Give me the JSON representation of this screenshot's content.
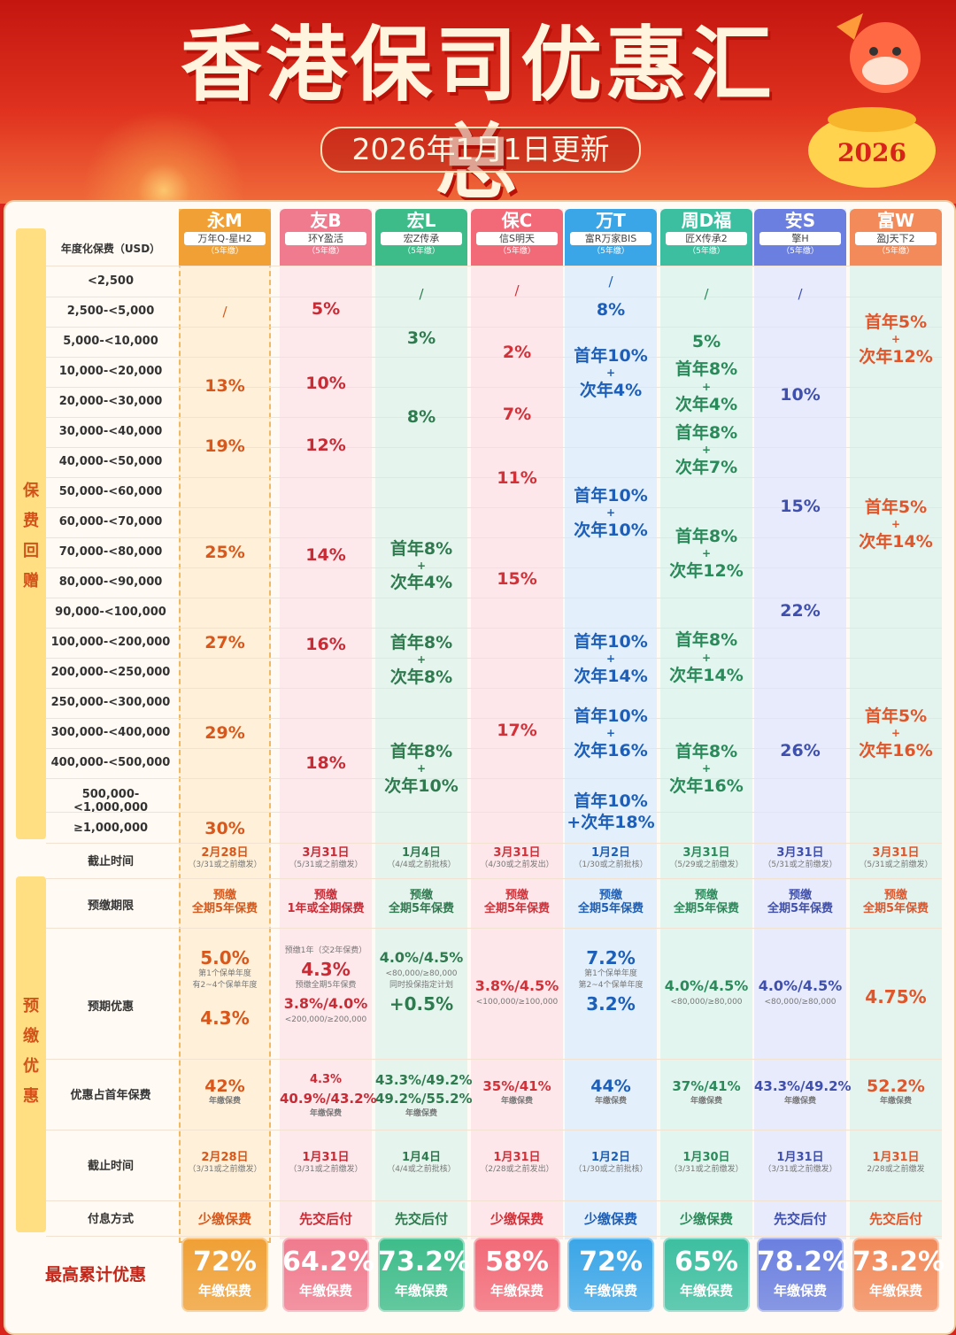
{
  "title": "香港保司优惠汇总",
  "update": "2026年1月1日更新",
  "year_badge": "2026",
  "premium_header": "年度化保费（USD）",
  "sections": {
    "rebate": "保费回赠",
    "prepay": "预缴优惠"
  },
  "rows": {
    "deadline": "截止时间",
    "prepay_term": "预缴期限",
    "prepay_rate": "预期优惠",
    "ratio": "优惠占首年保费",
    "deadline2": "截止时间",
    "interest": "付息方式",
    "max": "最高累计优惠"
  },
  "tiers": [
    "<2,500",
    "2,500-<5,000",
    "5,000-<10,000",
    "10,000-<20,000",
    "20,000-<30,000",
    "30,000-<40,000",
    "40,000-<50,000",
    "50,000-<60,000",
    "60,000-<70,000",
    "70,000-<80,000",
    "80,000-<90,000",
    "90,000-<100,000",
    "100,000-<200,000",
    "200,000-<250,000",
    "250,000-<300,000",
    "300,000-<400,000",
    "400,000-<500,000",
    "500,000-<1,000,000",
    "≥1,000,000"
  ],
  "columns": [
    {
      "name": "永M",
      "product": "万年Q-星H2",
      "years": "（5年缴）",
      "color": "#f0a035",
      "text": "#d9571a"
    },
    {
      "name": "友B",
      "product": "环Y盈活",
      "years": "（5年缴）",
      "color": "#f07a8e",
      "text": "#c92b35"
    },
    {
      "name": "宏L",
      "product": "宏Z传承",
      "years": "（5年缴）",
      "color": "#3dbc8a",
      "text": "#2f7a4f"
    },
    {
      "name": "保C",
      "product": "信S明天",
      "years": "（5年缴）",
      "color": "#f26a78",
      "text": "#d33038"
    },
    {
      "name": "万T",
      "product": "富R万家BIS",
      "years": "（5年缴）",
      "color": "#3aa6e8",
      "text": "#1d5fb8"
    },
    {
      "name": "周D福",
      "product": "匠X传承2",
      "years": "（5年缴）",
      "color": "#3cbfa0",
      "text": "#2a8a5a"
    },
    {
      "name": "安S",
      "product": "擎H",
      "years": "（5年缴）",
      "color": "#6a7fe0",
      "text": "#3f4fae"
    },
    {
      "name": "富W",
      "product": "盈J天下2",
      "years": "（5年缴）",
      "color": "#f28a5a",
      "text": "#e0552a"
    }
  ],
  "rebate": {
    "ym": [
      "/",
      "13%",
      "19%",
      "25%",
      "27%",
      "29%",
      "30%"
    ],
    "yb": [
      "5%",
      "10%",
      "12%",
      "14%",
      "16%",
      "18%"
    ],
    "hl": [
      "/",
      "3%",
      "8%",
      "首年8%",
      "+",
      "次年4%",
      "首年8%",
      "+",
      "次年8%",
      "首年8%",
      "+",
      "次年10%"
    ],
    "bc": [
      "/",
      "2%",
      "7%",
      "11%",
      "15%",
      "17%"
    ],
    "wt": [
      "/",
      "8%",
      "首年10%",
      "+",
      "次年4%",
      "首年10%",
      "+",
      "次年10%",
      "首年10%",
      "+",
      "次年14%",
      "首年10%",
      "+",
      "次年16%",
      "首年10%",
      "+次年18%"
    ],
    "zd": [
      "/",
      "5%",
      "首年8%",
      "+",
      "次年4%",
      "首年8%",
      "+",
      "次年7%",
      "首年8%",
      "+",
      "次年12%",
      "首年8%",
      "+",
      "次年14%",
      "首年8%",
      "+",
      "次年16%"
    ],
    "as": [
      "/",
      "10%",
      "15%",
      "22%",
      "26%"
    ],
    "fw": [
      "首年5%",
      "+",
      "次年12%",
      "首年5%",
      "+",
      "次年14%",
      "首年5%",
      "+",
      "次年16%"
    ]
  },
  "deadline": [
    {
      "d": "2月28日",
      "n": "（3/31或之前缴发）"
    },
    {
      "d": "3月31日",
      "n": "（5/31或之前缴发）"
    },
    {
      "d": "1月4日",
      "n": "（4/4或之前批核）"
    },
    {
      "d": "3月31日",
      "n": "（4/30或之前发出）"
    },
    {
      "d": "1月2日",
      "n": "（1/30或之前批核）"
    },
    {
      "d": "3月31日",
      "n": "（5/29或之前缴发）"
    },
    {
      "d": "3月31日",
      "n": "（5/31或之前缴发）"
    },
    {
      "d": "3月31日",
      "n": "（5/31或之前缴发）"
    }
  ],
  "prepay_term": [
    {
      "a": "预缴",
      "b": "全期5年保费"
    },
    {
      "a": "预缴",
      "b": "1年或全期保费"
    },
    {
      "a": "预缴",
      "b": "全期5年保费"
    },
    {
      "a": "预缴",
      "b": "全期5年保费"
    },
    {
      "a": "预缴",
      "b": "全期5年保费"
    },
    {
      "a": "预缴",
      "b": "全期5年保费"
    },
    {
      "a": "预缴",
      "b": "全期5年保费"
    },
    {
      "a": "预缴",
      "b": "全期5年保费"
    }
  ],
  "prepay_rate": {
    "ym": {
      "r1": "5.0%",
      "n1": "第1个保单年度",
      "r2": "4.3%",
      "n2": "有2~4个保单年度"
    },
    "yb": {
      "n1": "预缴1年（交2年保费）",
      "r1": "4.3%",
      "n2": "预缴全期5年保费",
      "r2": "3.8%/4.0%",
      "n3": "<200,000/≥200,000"
    },
    "hl": {
      "r1": "4.0%/4.5%",
      "n1": "<80,000/≥80,000",
      "n2": "同时投保指定计划",
      "r2": "+0.5%"
    },
    "bc": {
      "r1": "3.8%/4.5%",
      "n1": "<100,000/≥100,000"
    },
    "wt": {
      "r1": "7.2%",
      "n1": "第1个保单年度",
      "r2": "3.2%",
      "n2": "第2~4个保单年度"
    },
    "zd": {
      "r1": "4.0%/4.5%",
      "n1": "<80,000/≥80,000"
    },
    "as": {
      "r1": "4.0%/4.5%",
      "n1": "<80,000/≥80,000"
    },
    "fw": {
      "r1": "4.75%"
    }
  },
  "ratio": [
    {
      "v": "42%",
      "n": "年缴保费"
    },
    {
      "v": "40.9%/43.2%",
      "p": "4.3%",
      "n": "年缴保费"
    },
    {
      "v": "49.2%/55.2%",
      "p": "43.3%/49.2%",
      "n": "年缴保费"
    },
    {
      "v": "35%/41%",
      "n": "年缴保费"
    },
    {
      "v": "44%",
      "n": "年缴保费"
    },
    {
      "v": "37%/41%",
      "n": "年缴保费"
    },
    {
      "v": "43.3%/49.2%",
      "n": "年缴保费"
    },
    {
      "v": "52.2%",
      "n": "年缴保费"
    }
  ],
  "deadline2": [
    {
      "d": "2月28日",
      "n": "（3/31或之前缴发）"
    },
    {
      "d": "1月31日",
      "n": "（3/31或之前缴发）"
    },
    {
      "d": "1月4日",
      "n": "（4/4或之前批核）"
    },
    {
      "d": "1月31日",
      "n": "（2/28或之前发出）"
    },
    {
      "d": "1月2日",
      "n": "（1/30或之前批核）"
    },
    {
      "d": "1月30日",
      "n": "（3/31或之前缴发）"
    },
    {
      "d": "1月31日",
      "n": "（3/31或之前缴发）"
    },
    {
      "d": "1月31日",
      "n": "2/28或之前缴发"
    }
  ],
  "interest": [
    "少缴保费",
    "先交后付",
    "先交后付",
    "少缴保费",
    "少缴保费",
    "少缴保费",
    "先交后付",
    "先交后付"
  ],
  "max": [
    {
      "v": "72%",
      "u": "年缴保费"
    },
    {
      "v": "64.2%",
      "u": "年缴保费"
    },
    {
      "v": "73.2%",
      "u": "年缴保费"
    },
    {
      "v": "58%",
      "u": "年缴保费"
    },
    {
      "v": "72%",
      "u": "年缴保费"
    },
    {
      "v": "65%",
      "u": "年缴保费"
    },
    {
      "v": "78.2%",
      "u": "年缴保费"
    },
    {
      "v": "73.2%",
      "u": "年缴保费"
    }
  ]
}
